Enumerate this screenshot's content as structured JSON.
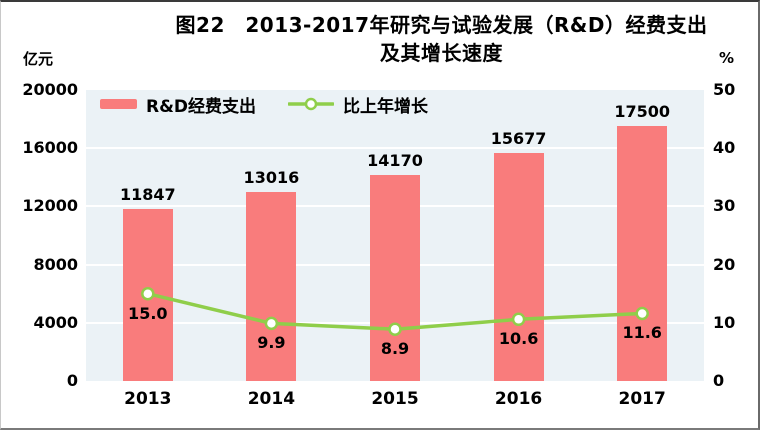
{
  "figure": {
    "title_line1": "图22　2013-2017年研究与试验发展（R&D）经费支出",
    "title_line2": "及其增长速度",
    "left_axis_unit": "亿元",
    "right_axis_unit": "%"
  },
  "colors": {
    "bar": "#F97C7C",
    "line": "#8FCE4A",
    "marker_fill": "#FFFFFF",
    "plot_bg": "#EBF2F6",
    "gridline": "#FFFFFF",
    "text": "#000000"
  },
  "chart_data": {
    "type": "bar+line combo",
    "categories": [
      "2013",
      "2014",
      "2015",
      "2016",
      "2017"
    ],
    "series": [
      {
        "name": "R&D经费支出",
        "type": "bar",
        "axis": "left",
        "values": [
          11847,
          13016,
          14170,
          15677,
          17500
        ]
      },
      {
        "name": "比上年增长",
        "type": "line",
        "axis": "right",
        "values": [
          15.0,
          9.9,
          8.9,
          10.6,
          11.6
        ]
      }
    ],
    "left_axis": {
      "unit": "亿元",
      "min": 0,
      "max": 20000,
      "step": 4000,
      "ticks": [
        0,
        4000,
        8000,
        12000,
        16000,
        20000
      ]
    },
    "right_axis": {
      "unit": "%",
      "min": 0,
      "max": 50,
      "step": 10,
      "ticks": [
        0,
        10,
        20,
        30,
        40,
        50
      ]
    },
    "legend_position": "top-left-inside",
    "grid": true,
    "title": "图22 2013-2017年研究与试验发展（R&D）经费支出及其增长速度"
  }
}
